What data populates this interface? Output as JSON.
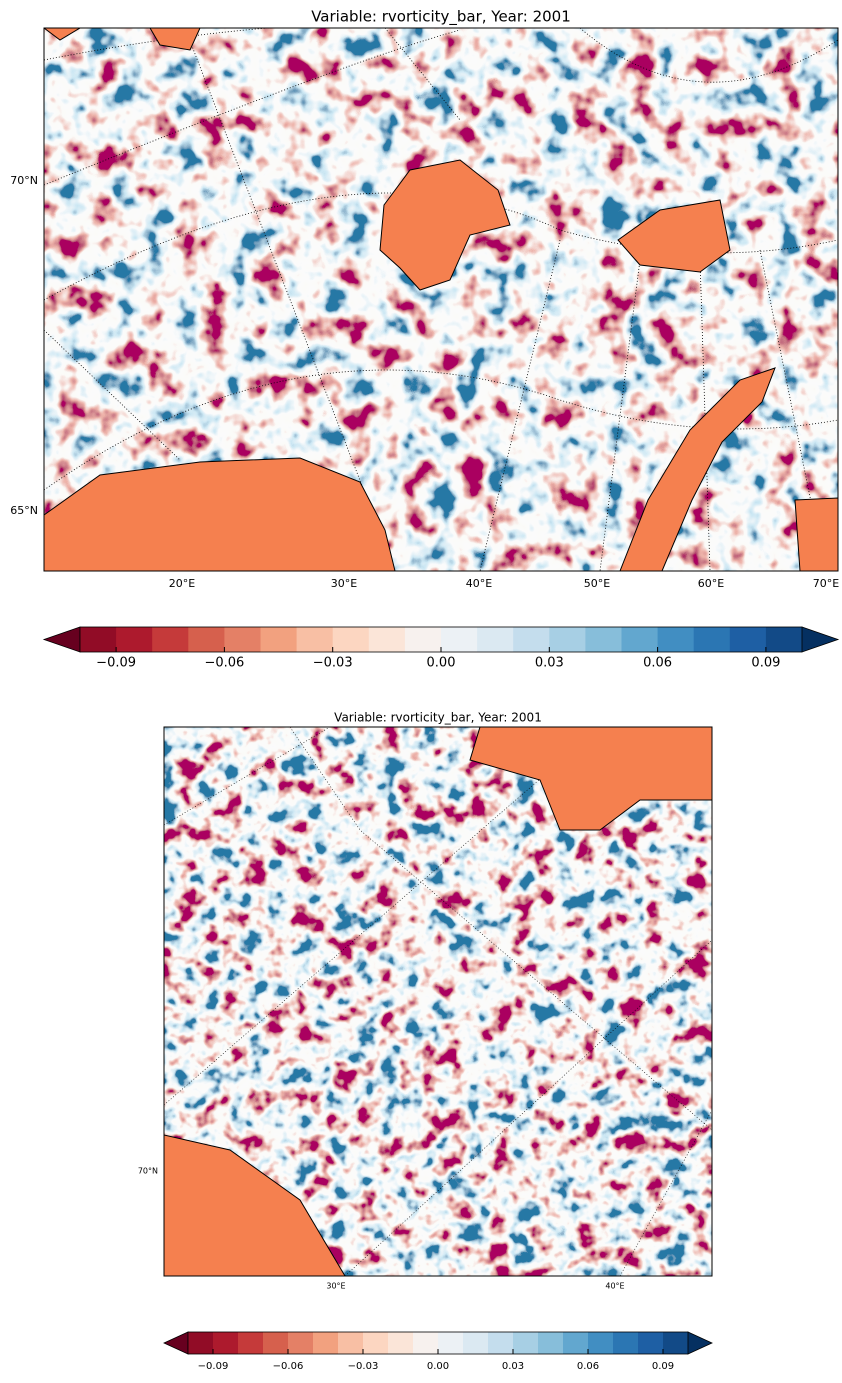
{
  "panels": [
    {
      "title": "Variable: rvorticity_bar,  Year: 2001",
      "lat_labels": [
        "70°N",
        "65°N"
      ],
      "lon_labels": [
        "20°E",
        "30°E",
        "40°E",
        "50°E",
        "60°E",
        "70°E"
      ]
    },
    {
      "title": "Variable: rvorticity_bar,  Year: 2001",
      "lat_labels": [
        "70°N"
      ],
      "lon_labels": [
        "30°E",
        "40°E"
      ]
    }
  ],
  "land_color": "#f5804f",
  "colorbar": {
    "lim": [
      -0.1,
      0.1
    ],
    "ticks": [
      {
        "value": -0.09,
        "label": "−0.09"
      },
      {
        "value": -0.06,
        "label": "−0.06"
      },
      {
        "value": -0.03,
        "label": "−0.03"
      },
      {
        "value": 0,
        "label": "0.00"
      },
      {
        "value": 0.03,
        "label": "0.03"
      },
      {
        "value": 0.06,
        "label": "0.06"
      },
      {
        "value": 0.09,
        "label": "0.09"
      }
    ],
    "colors": [
      "#910c26",
      "#ad1a2d",
      "#c53a3a",
      "#d6604d",
      "#e48066",
      "#f2a17f",
      "#f8bfa4",
      "#fcd6c1",
      "#fbe5d8",
      "#f7f1ee",
      "#ecf1f5",
      "#dbe9f2",
      "#c4dded",
      "#a7cfe4",
      "#87beda",
      "#62a7cf",
      "#418ec2",
      "#2b76b3",
      "#1e5fa4",
      "#124a87"
    ],
    "under_color": "#67001f",
    "over_color": "#053061"
  }
}
